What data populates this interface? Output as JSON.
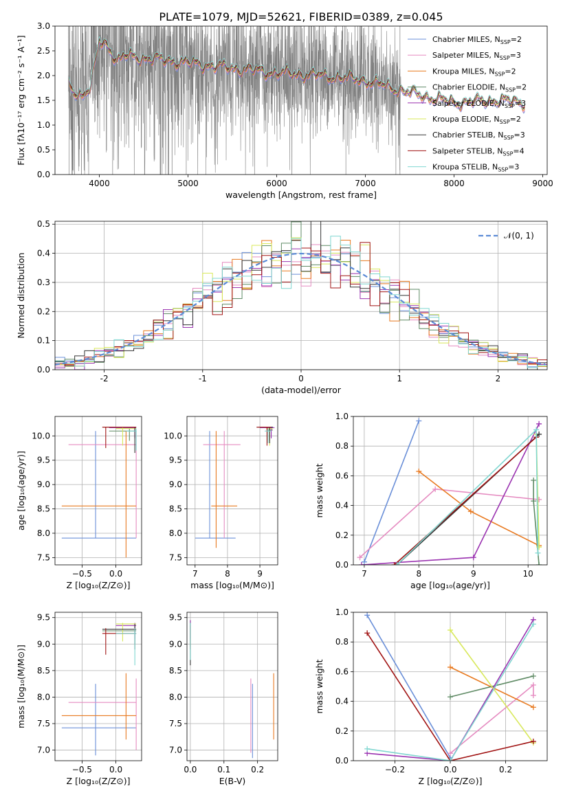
{
  "page_title": "PLATE=1079, MJD=52621, FIBERID=0389, z=0.045",
  "colors": [
    "#6a8fd8",
    "#e58ac0",
    "#e8791f",
    "#5e8a64",
    "#9a32b0",
    "#d8e85a",
    "#333333",
    "#a01212",
    "#7fd6d0"
  ],
  "chart_data": [
    {
      "id": "spectrum",
      "type": "line",
      "title": "PLATE=1079, MJD=52621, FIBERID=0389, z=0.045",
      "xlabel": "wavelength [Angstrom, rest frame]",
      "ylabel": "Flux [fλ10⁻¹⁷ erg cm⁻² s⁻¹ A⁻¹]",
      "xlim": [
        3500,
        9050
      ],
      "ylim": [
        0,
        3.0
      ],
      "xticks": [
        4000,
        5000,
        6000,
        7000,
        8000,
        9000
      ],
      "yticks": [
        0.0,
        0.5,
        1.0,
        1.5,
        2.0,
        2.5,
        3.0
      ],
      "ytick_labels": [
        "0.0",
        "0.5",
        "1.0",
        "1.5",
        "2.0",
        "2.5",
        "3.0"
      ],
      "grid": false,
      "legend_position": "top-right",
      "data_series": {
        "name": "data",
        "color": "#808080",
        "x_range": [
          3650,
          7400
        ],
        "noise_level": "high below 5000, moderate above"
      },
      "model_continuum": {
        "x": [
          3650,
          3700,
          3800,
          3900,
          4000,
          4100,
          4200,
          4300,
          4500,
          4800,
          5000,
          5500,
          6000,
          6500,
          7000,
          7500,
          8000,
          8500,
          8800
        ],
        "y": [
          1.9,
          1.7,
          1.6,
          1.75,
          2.7,
          2.6,
          2.3,
          2.4,
          2.35,
          2.3,
          2.25,
          2.15,
          2.05,
          2.0,
          1.9,
          1.65,
          1.45,
          1.5,
          1.45
        ]
      },
      "series": [
        {
          "name": "Chabrier MILES, N",
          "sub": "SSP",
          "suffix": "=2",
          "color": "#6a8fd8"
        },
        {
          "name": "Salpeter MILES, N",
          "sub": "SSP",
          "suffix": "=3",
          "color": "#e58ac0"
        },
        {
          "name": "Kroupa MILES, N",
          "sub": "SSP",
          "suffix": "=2",
          "color": "#e8791f"
        },
        {
          "name": "Chabrier ELODIE, N",
          "sub": "SSP",
          "suffix": "=2",
          "color": "#5e8a64"
        },
        {
          "name": "Salpeter ELODIE, N",
          "sub": "SSP",
          "suffix": "=3",
          "color": "#9a32b0"
        },
        {
          "name": "Kroupa ELODIE, N",
          "sub": "SSP",
          "suffix": "=2",
          "color": "#d8e85a"
        },
        {
          "name": "Chabrier STELIB, N",
          "sub": "SSP",
          "suffix": "=3",
          "color": "#333333"
        },
        {
          "name": "Salpeter STELIB, N",
          "sub": "SSP",
          "suffix": "=4",
          "color": "#a01212"
        },
        {
          "name": "Kroupa STELIB, N",
          "sub": "SSP",
          "suffix": "=3",
          "color": "#7fd6d0"
        }
      ]
    },
    {
      "id": "residuals",
      "type": "histogram",
      "xlabel": "(data-model)/error",
      "ylabel": "Normed distribution",
      "xlim": [
        -2.5,
        2.5
      ],
      "ylim": [
        0,
        0.51
      ],
      "xticks": [
        -2,
        -1,
        0,
        1,
        2
      ],
      "yticks": [
        0.0,
        0.1,
        0.2,
        0.3,
        0.4,
        0.5
      ],
      "ytick_labels": [
        "0.0",
        "0.1",
        "0.2",
        "0.3",
        "0.4",
        "0.5"
      ],
      "grid": true,
      "bins": 50,
      "bin_range": [
        -2.5,
        2.5
      ],
      "legend_position": "top-right",
      "reference_curve": {
        "name": "𝒩(0, 1)",
        "color": "#5a8ad6",
        "style": "dashed"
      },
      "series_colors": [
        "#6a8fd8",
        "#e58ac0",
        "#e8791f",
        "#5e8a64",
        "#9a32b0",
        "#d8e85a",
        "#333333",
        "#a01212",
        "#7fd6d0"
      ]
    },
    {
      "id": "age_vs_Z",
      "type": "errorbar",
      "xlabel": "Z [log₁₀(Z/Z⊙)]",
      "ylabel": "age  [log₁₀(age/yr)]",
      "xlim": [
        -0.9,
        0.38
      ],
      "ylim": [
        7.35,
        10.4
      ],
      "xticks": [
        -0.5,
        0.0
      ],
      "xtick_labels": [
        "−0.5",
        "0.0"
      ],
      "yticks": [
        7.5,
        8.0,
        8.5,
        9.0,
        9.5,
        10.0
      ],
      "ytick_labels": [
        "7.5",
        "8.0",
        "8.5",
        "9.0",
        "9.5",
        "10.0"
      ],
      "grid": true,
      "bars": [
        {
          "c": 0,
          "x": -0.3,
          "y": 7.9,
          "x0": -0.8,
          "x1": 0.3,
          "y0": 7.9,
          "y1": 10.1
        },
        {
          "c": 1,
          "x": 0.3,
          "y": 9.82,
          "x0": -0.7,
          "x1": 0.3,
          "y0": 7.9,
          "y1": 10.1
        },
        {
          "c": 2,
          "x": 0.15,
          "y": 8.56,
          "x0": -0.8,
          "x1": 0.3,
          "y0": 7.5,
          "y1": 10.1
        },
        {
          "c": 3,
          "x": 0.2,
          "y": 10.1,
          "x0": -0.1,
          "x1": 0.3,
          "y0": 9.9,
          "y1": 10.15
        },
        {
          "c": 4,
          "x": 0.28,
          "y": 10.17,
          "x0": -0.1,
          "x1": 0.3,
          "y0": 9.95,
          "y1": 10.18
        },
        {
          "c": 5,
          "x": 0.1,
          "y": 10.15,
          "x0": 0.0,
          "x1": 0.3,
          "y0": 9.8,
          "y1": 10.18
        },
        {
          "c": 6,
          "x": 0.28,
          "y": 10.18,
          "x0": -0.2,
          "x1": 0.3,
          "y0": 9.65,
          "y1": 10.18
        },
        {
          "c": 7,
          "x": -0.15,
          "y": 10.18,
          "x0": -0.2,
          "x1": 0.3,
          "y0": 9.75,
          "y1": 10.18
        },
        {
          "c": 8,
          "x": 0.3,
          "y": 10.1,
          "x0": 0.15,
          "x1": 0.3,
          "y0": 9.7,
          "y1": 10.15
        }
      ]
    },
    {
      "id": "age_vs_mass",
      "type": "errorbar",
      "xlabel": "mass [log₁₀(M/M⊙)]",
      "ylabel": "",
      "xlim": [
        6.75,
        9.55
      ],
      "ylim": [
        7.35,
        10.4
      ],
      "xticks": [
        7,
        8,
        9
      ],
      "yticks": [
        7.5,
        8.0,
        8.5,
        9.0,
        9.5,
        10.0
      ],
      "ytick_labels": [
        "7.5",
        "8.0",
        "8.5",
        "9.0",
        "9.5",
        "10.0"
      ],
      "grid": true,
      "bars": [
        {
          "c": 0,
          "x": 7.45,
          "y": 7.9,
          "x0": 7.0,
          "x1": 8.25,
          "y0": 7.9,
          "y1": 10.1
        },
        {
          "c": 1,
          "x": 7.9,
          "y": 9.82,
          "x0": 7.25,
          "x1": 8.4,
          "y0": 7.9,
          "y1": 10.1
        },
        {
          "c": 2,
          "x": 7.65,
          "y": 8.56,
          "x0": 7.5,
          "x1": 8.3,
          "y0": 7.7,
          "y1": 10.1
        },
        {
          "c": 3,
          "x": 9.3,
          "y": 10.12,
          "x0": 9.25,
          "x1": 9.4,
          "y0": 9.9,
          "y1": 10.15
        },
        {
          "c": 4,
          "x": 9.35,
          "y": 10.17,
          "x0": 9.0,
          "x1": 9.45,
          "y0": 9.95,
          "y1": 10.18
        },
        {
          "c": 5,
          "x": 9.3,
          "y": 10.15,
          "x0": 9.2,
          "x1": 9.4,
          "y0": 9.8,
          "y1": 10.18
        },
        {
          "c": 6,
          "x": 9.3,
          "y": 10.18,
          "x0": 8.9,
          "x1": 9.4,
          "y0": 9.85,
          "y1": 10.18
        },
        {
          "c": 7,
          "x": 9.22,
          "y": 10.18,
          "x0": 8.9,
          "x1": 9.35,
          "y0": 9.8,
          "y1": 10.18
        },
        {
          "c": 8,
          "x": 9.25,
          "y": 10.1,
          "x0": 9.15,
          "x1": 9.35,
          "y0": 9.85,
          "y1": 10.15
        }
      ]
    },
    {
      "id": "weight_vs_age",
      "type": "line",
      "xlabel": "age  [log₁₀(age/yr)]",
      "ylabel": "mass weight",
      "xlim": [
        6.8,
        10.35
      ],
      "ylim": [
        0,
        1.0
      ],
      "xticks": [
        7,
        8,
        9,
        10
      ],
      "yticks": [
        0.0,
        0.2,
        0.4,
        0.6,
        0.8,
        1.0
      ],
      "ytick_labels": [
        "0.0",
        "0.2",
        "0.4",
        "0.6",
        "0.8",
        "1.0"
      ],
      "grid": true,
      "series": [
        {
          "c": 0,
          "x": [
            7.0,
            8.0
          ],
          "y": [
            0.02,
            0.97
          ]
        },
        {
          "c": 1,
          "x": [
            6.92,
            8.3,
            10.2
          ],
          "y": [
            0.05,
            0.51,
            0.44
          ]
        },
        {
          "c": 2,
          "x": [
            8.0,
            8.95,
            10.2
          ],
          "y": [
            0.63,
            0.36,
            0.13
          ]
        },
        {
          "c": 3,
          "x": [
            10.1,
            10.1,
            10.2
          ],
          "y": [
            0.57,
            0.43,
            0.0
          ]
        },
        {
          "c": 4,
          "x": [
            6.95,
            9.0,
            10.2
          ],
          "y": [
            0.0,
            0.05,
            0.95
          ]
        },
        {
          "c": 5,
          "x": [
            10.15,
            10.2
          ],
          "y": [
            0.88,
            0.12
          ]
        },
        {
          "c": 6,
          "x": [
            7.6,
            10.2
          ],
          "y": [
            0.0,
            0.88
          ]
        },
        {
          "c": 7,
          "x": [
            7.55,
            10.15
          ],
          "y": [
            0.0,
            0.86
          ]
        },
        {
          "c": 8,
          "x": [
            7.6,
            10.15,
            10.18
          ],
          "y": [
            0.0,
            0.91,
            0.08
          ]
        }
      ]
    },
    {
      "id": "mass_vs_Z",
      "type": "errorbar",
      "xlabel": "Z [log₁₀(Z/Z⊙)]",
      "ylabel": "mass [log₁₀(M/M⊙)]",
      "xlim": [
        -0.9,
        0.38
      ],
      "ylim": [
        6.8,
        9.6
      ],
      "xticks": [
        -0.5,
        0.0
      ],
      "xtick_labels": [
        "−0.5",
        "0.0"
      ],
      "yticks": [
        7.0,
        7.5,
        8.0,
        8.5,
        9.0,
        9.5
      ],
      "ytick_labels": [
        "7.0",
        "7.5",
        "8.0",
        "8.5",
        "9.0",
        "9.5"
      ],
      "grid": true,
      "bars": [
        {
          "c": 0,
          "x": -0.3,
          "y": 7.42,
          "x0": -0.8,
          "x1": 0.3,
          "y0": 6.9,
          "y1": 8.25
        },
        {
          "c": 1,
          "x": 0.3,
          "y": 7.9,
          "x0": -0.7,
          "x1": 0.3,
          "y0": 7.0,
          "y1": 8.35
        },
        {
          "c": 2,
          "x": 0.15,
          "y": 7.65,
          "x0": -0.8,
          "x1": 0.3,
          "y0": 7.2,
          "y1": 8.45
        },
        {
          "c": 3,
          "x": 0.28,
          "y": 9.25,
          "x0": -0.2,
          "x1": 0.3,
          "y0": 9.0,
          "y1": 9.38
        },
        {
          "c": 4,
          "x": 0.28,
          "y": 9.35,
          "x0": 0.0,
          "x1": 0.3,
          "y0": 9.1,
          "y1": 9.4
        },
        {
          "c": 5,
          "x": 0.1,
          "y": 9.38,
          "x0": 0.0,
          "x1": 0.3,
          "y0": 9.05,
          "y1": 9.4
        },
        {
          "c": 6,
          "x": 0.28,
          "y": 9.28,
          "x0": -0.2,
          "x1": 0.3,
          "y0": 8.9,
          "y1": 9.38
        },
        {
          "c": 7,
          "x": -0.15,
          "y": 9.2,
          "x0": -0.2,
          "x1": 0.3,
          "y0": 8.8,
          "y1": 9.3
        },
        {
          "c": 8,
          "x": 0.28,
          "y": 9.2,
          "x0": 0.0,
          "x1": 0.3,
          "y0": 8.6,
          "y1": 9.3
        }
      ]
    },
    {
      "id": "mass_vs_ebv",
      "type": "errorbar",
      "xlabel": "E(B-V)",
      "ylabel": "",
      "xlim": [
        -0.01,
        0.26
      ],
      "ylim": [
        6.8,
        9.6
      ],
      "xticks": [
        0.0,
        0.1,
        0.2
      ],
      "xtick_labels": [
        "0.0",
        "0.1",
        "0.2"
      ],
      "yticks": [
        7.0,
        7.5,
        8.0,
        8.5,
        9.0,
        9.5
      ],
      "ytick_labels": [
        "7.0",
        "7.5",
        "8.0",
        "8.5",
        "9.0",
        "9.5"
      ],
      "grid": true,
      "bars": [
        {
          "c": 0,
          "x": 0.185,
          "y": 7.5,
          "x0": 0.185,
          "x1": 0.185,
          "y0": 6.85,
          "y1": 8.25
        },
        {
          "c": 1,
          "x": 0.18,
          "y": 7.6,
          "x0": 0.18,
          "x1": 0.18,
          "y0": 6.95,
          "y1": 8.35
        },
        {
          "c": 2,
          "x": 0.248,
          "y": 7.8,
          "x0": 0.248,
          "x1": 0.248,
          "y0": 7.2,
          "y1": 8.45
        },
        {
          "c": 3,
          "x": 0.0,
          "y": 9.2,
          "x0": 0.0,
          "x1": 0.0,
          "y0": 8.95,
          "y1": 9.45
        },
        {
          "c": 4,
          "x": 0.0,
          "y": 9.3,
          "x0": 0.0,
          "x1": 0.0,
          "y0": 9.1,
          "y1": 9.45
        },
        {
          "c": 6,
          "x": 0.0,
          "y": 9.0,
          "x0": 0.0,
          "x1": 0.0,
          "y0": 8.6,
          "y1": 9.4
        },
        {
          "c": 7,
          "x": 0.0,
          "y": 9.1,
          "x0": 0.0,
          "x1": 0.0,
          "y0": 8.9,
          "y1": 9.35
        },
        {
          "c": 8,
          "x": 0.0,
          "y": 9.05,
          "x0": 0.0,
          "x1": 0.0,
          "y0": 8.7,
          "y1": 9.4
        }
      ]
    },
    {
      "id": "weight_vs_Z",
      "type": "line",
      "xlabel": "Z [log₁₀(Z/Z⊙)]",
      "ylabel": "mass weight",
      "xlim": [
        -0.35,
        0.35
      ],
      "ylim": [
        0,
        1.0
      ],
      "xticks": [
        -0.2,
        0.0,
        0.2
      ],
      "xtick_labels": [
        "−0.2",
        "0.0",
        "0.2"
      ],
      "yticks": [
        0.0,
        0.2,
        0.4,
        0.6,
        0.8,
        1.0
      ],
      "ytick_labels": [
        "0.0",
        "0.2",
        "0.4",
        "0.6",
        "0.8",
        "1.0"
      ],
      "grid": true,
      "series": [
        {
          "c": 0,
          "x": [
            -0.3,
            0.0
          ],
          "y": [
            0.98,
            0.02
          ]
        },
        {
          "c": 1,
          "x": [
            0.0,
            0.3,
            0.3
          ],
          "y": [
            0.05,
            0.51,
            0.44
          ]
        },
        {
          "c": 2,
          "x": [
            0.0,
            0.3
          ],
          "y": [
            0.63,
            0.36
          ]
        },
        {
          "c": 3,
          "x": [
            0.0,
            0.3
          ],
          "y": [
            0.43,
            0.57
          ]
        },
        {
          "c": 4,
          "x": [
            -0.3,
            0.0,
            0.3
          ],
          "y": [
            0.05,
            0.0,
            0.95
          ]
        },
        {
          "c": 5,
          "x": [
            0.0,
            0.3
          ],
          "y": [
            0.88,
            0.12
          ]
        },
        {
          "c": 7,
          "x": [
            -0.3,
            0.0,
            0.3
          ],
          "y": [
            0.86,
            0.0,
            0.13
          ]
        },
        {
          "c": 8,
          "x": [
            -0.3,
            0.0,
            0.3
          ],
          "y": [
            0.08,
            0.0,
            0.92
          ]
        }
      ]
    }
  ]
}
